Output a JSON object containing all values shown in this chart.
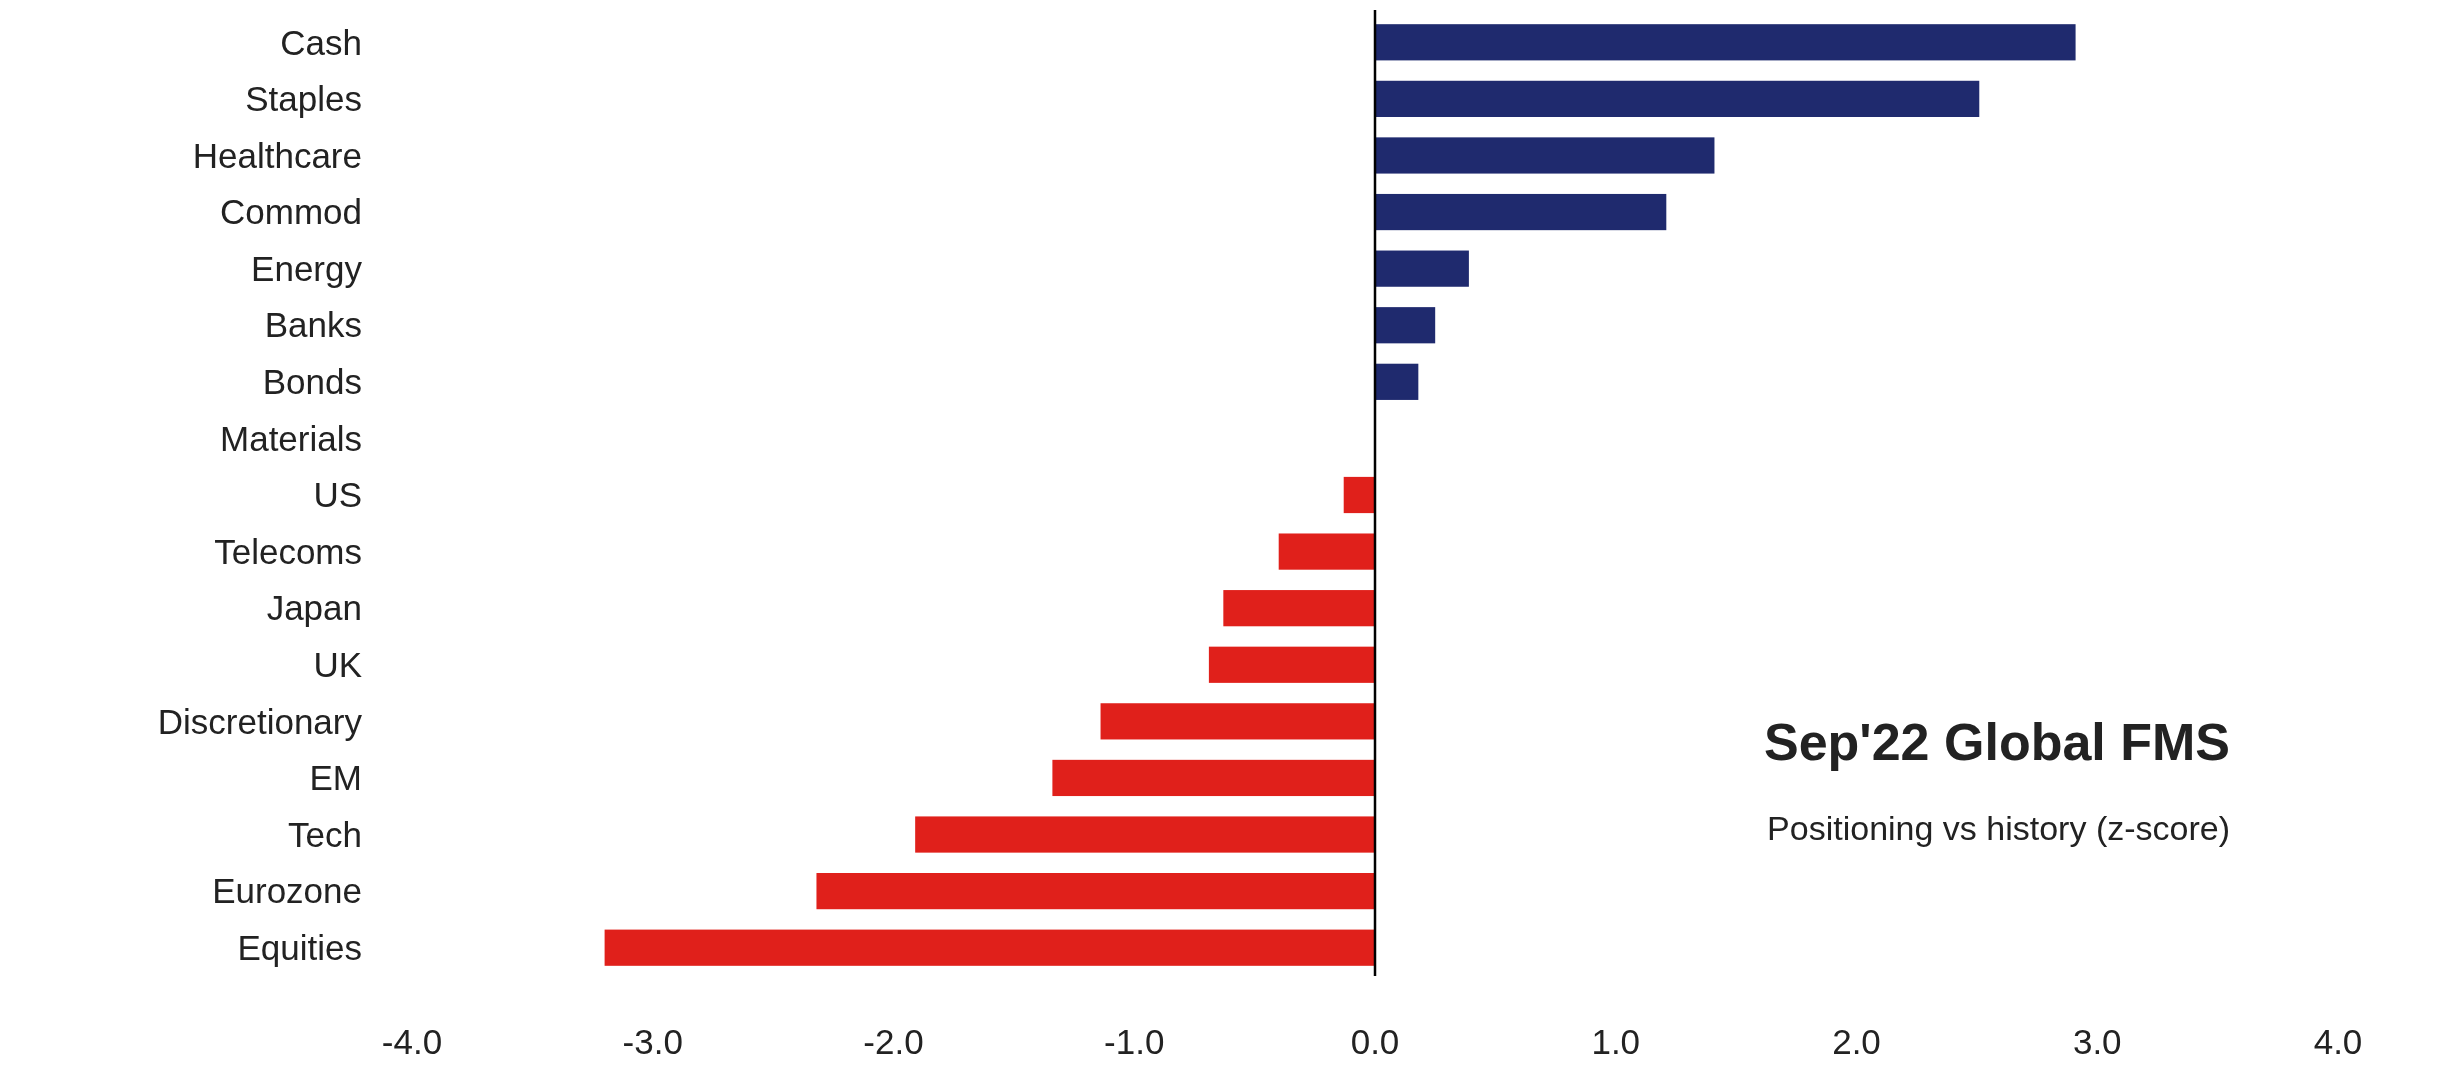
{
  "chart_data": {
    "type": "bar",
    "orientation": "horizontal",
    "title": "Sep'22 Global FMS",
    "subtitle": "Positioning vs history (z-score)",
    "categories": [
      "Cash",
      "Staples",
      "Healthcare",
      "Commod",
      "Energy",
      "Banks",
      "Bonds",
      "Materials",
      "US",
      "Telecoms",
      "Japan",
      "UK",
      "Discretionary",
      "EM",
      "Tech",
      "Eurozone",
      "Equities"
    ],
    "values": [
      2.91,
      2.51,
      1.41,
      1.21,
      0.39,
      0.25,
      0.18,
      0,
      -0.13,
      -0.4,
      -0.63,
      -0.69,
      -1.14,
      -1.34,
      -1.91,
      -2.32,
      -3.2
    ],
    "colors": [
      "#1f2a6e",
      "#1f2a6e",
      "#1f2a6e",
      "#1f2a6e",
      "#1f2a6e",
      "#1f2a6e",
      "#1f2a6e",
      "#1f2a6e",
      "#e0201b",
      "#e0201b",
      "#e0201b",
      "#e0201b",
      "#e0201b",
      "#e0201b",
      "#e0201b",
      "#e0201b",
      "#e0201b"
    ],
    "xlim": [
      -4,
      4
    ],
    "xticks": [
      {
        "value": -4,
        "label": "-4.0"
      },
      {
        "value": -3,
        "label": "-3.0"
      },
      {
        "value": -2,
        "label": "-2.0"
      },
      {
        "value": -1,
        "label": "-1.0"
      },
      {
        "value": 0,
        "label": "0.0"
      },
      {
        "value": 1,
        "label": "1.0"
      },
      {
        "value": 2,
        "label": "2.0"
      },
      {
        "value": 3,
        "label": "3.0"
      },
      {
        "value": 4,
        "label": "4.0"
      }
    ]
  }
}
